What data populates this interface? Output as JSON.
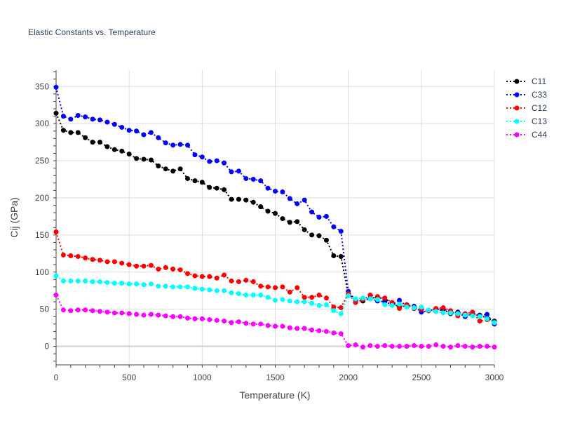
{
  "chart_data": {
    "type": "line",
    "title": "Elastic Constants vs. Temperature",
    "xlabel": "Temperature (K)",
    "ylabel": "Cij (GPa)",
    "xlim": [
      0,
      3000
    ],
    "ylim": [
      -25,
      372
    ],
    "xticks": [
      0,
      500,
      1000,
      1500,
      2000,
      2500,
      3000
    ],
    "yticks": [
      0,
      50,
      100,
      150,
      200,
      250,
      300,
      350
    ],
    "grid": true,
    "legend_position": "top-right",
    "x": [
      0,
      50,
      100,
      150,
      200,
      250,
      300,
      350,
      400,
      450,
      500,
      550,
      600,
      650,
      700,
      750,
      800,
      850,
      900,
      950,
      1000,
      1050,
      1100,
      1150,
      1200,
      1250,
      1300,
      1350,
      1400,
      1450,
      1500,
      1550,
      1600,
      1650,
      1700,
      1750,
      1800,
      1850,
      1900,
      1950,
      2000,
      2050,
      2100,
      2150,
      2200,
      2250,
      2300,
      2350,
      2400,
      2450,
      2500,
      2550,
      2600,
      2650,
      2700,
      2750,
      2800,
      2850,
      2900,
      2950,
      3000
    ],
    "series": [
      {
        "name": "C11",
        "color": "#000000",
        "values": [
          314,
          291,
          288,
          288,
          281,
          275,
          275,
          269,
          265,
          263,
          259,
          253,
          252,
          251,
          243,
          239,
          236,
          239,
          226,
          223,
          221,
          214,
          213,
          211,
          198,
          198,
          197,
          194,
          188,
          182,
          179,
          172,
          167,
          168,
          157,
          150,
          149,
          143,
          122,
          121,
          70,
          63,
          61,
          65,
          66,
          64,
          58,
          53,
          56,
          53,
          51,
          48,
          47,
          50,
          44,
          46,
          43,
          42,
          42,
          38,
          34
        ]
      },
      {
        "name": "C33",
        "color": "#0000ff",
        "values": [
          349,
          310,
          306,
          311,
          309,
          306,
          305,
          302,
          299,
          295,
          291,
          290,
          285,
          288,
          281,
          274,
          271,
          272,
          271,
          258,
          255,
          249,
          250,
          247,
          235,
          236,
          226,
          225,
          223,
          213,
          209,
          208,
          199,
          192,
          197,
          181,
          174,
          175,
          161,
          155,
          74,
          62,
          63,
          64,
          61,
          60,
          56,
          62,
          54,
          54,
          46,
          48,
          50,
          50,
          47,
          45,
          40,
          45,
          41,
          43,
          30
        ]
      },
      {
        "name": "C12",
        "color": "#ff0000",
        "values": [
          154,
          123,
          122,
          121,
          119,
          117,
          116,
          114,
          114,
          112,
          110,
          108,
          108,
          109,
          104,
          106,
          104,
          103,
          98,
          95,
          94,
          94,
          92,
          96,
          88,
          87,
          89,
          87,
          81,
          80,
          79,
          80,
          73,
          79,
          66,
          66,
          69,
          65,
          53,
          52,
          71,
          59,
          63,
          69,
          67,
          65,
          59,
          51,
          56,
          51,
          50,
          48,
          51,
          52,
          48,
          41,
          44,
          46,
          34,
          36,
          32
        ]
      },
      {
        "name": "C13",
        "color": "#00ffff",
        "values": [
          95,
          88,
          88,
          88,
          88,
          87,
          87,
          86,
          85,
          85,
          84,
          84,
          83,
          84,
          81,
          81,
          80,
          80,
          80,
          78,
          77,
          76,
          75,
          75,
          72,
          71,
          69,
          69,
          69,
          66,
          62,
          63,
          61,
          60,
          60,
          58,
          55,
          56,
          48,
          44,
          68,
          64,
          65,
          64,
          63,
          56,
          55,
          57,
          53,
          52,
          53,
          49,
          47,
          45,
          45,
          44,
          42,
          41,
          40,
          37,
          32
        ]
      },
      {
        "name": "C44",
        "color": "#ff00ff",
        "values": [
          69,
          49,
          48,
          49,
          49,
          48,
          47,
          46,
          45,
          45,
          44,
          43,
          42,
          43,
          42,
          41,
          40,
          40,
          38,
          37,
          37,
          36,
          35,
          34,
          32,
          33,
          31,
          30,
          30,
          28,
          27,
          27,
          25,
          24,
          24,
          22,
          21,
          20,
          18,
          17,
          1,
          2,
          -1,
          1,
          0,
          1,
          0,
          0,
          0,
          1,
          0,
          0,
          2,
          0,
          -1,
          1,
          0,
          -1,
          0,
          0,
          -1
        ]
      }
    ]
  }
}
